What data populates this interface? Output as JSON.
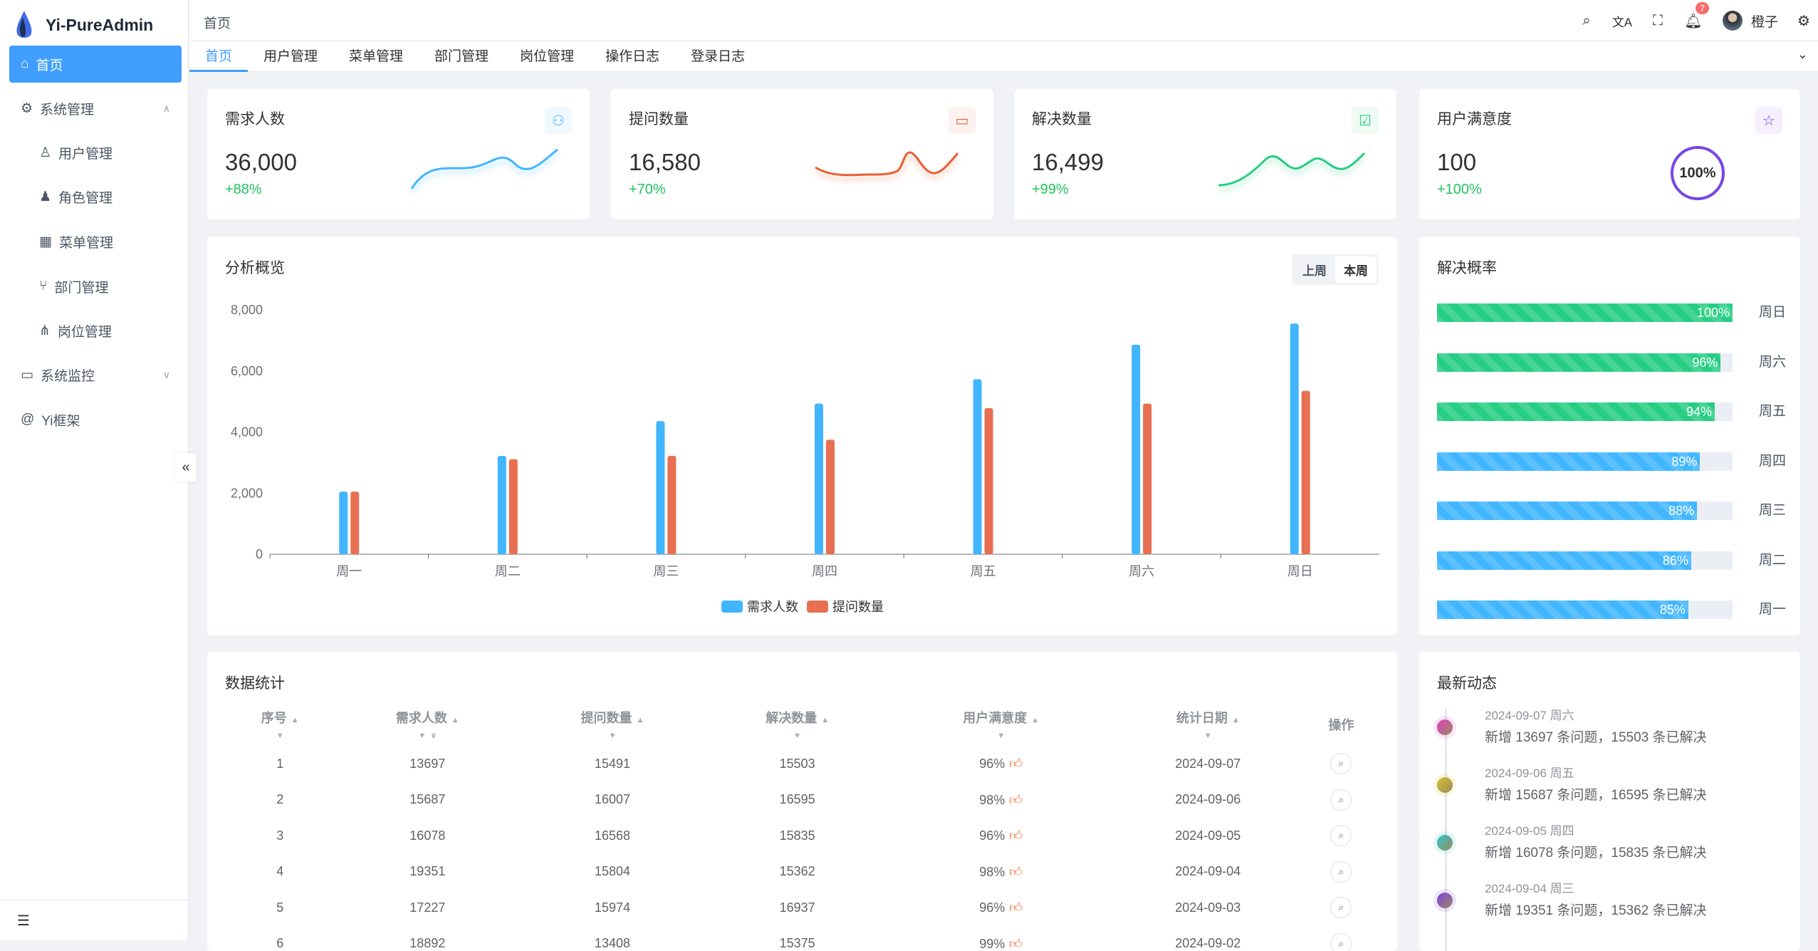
{
  "app": {
    "title": "Yi-PureAdmin"
  },
  "sidebar": {
    "items": [
      {
        "label": "首页",
        "icon": "home-icon",
        "active": true
      },
      {
        "label": "系统管理",
        "icon": "gear-icon",
        "expanded": true
      },
      {
        "label": "用户管理",
        "icon": "user-icon"
      },
      {
        "label": "角色管理",
        "icon": "role-icon"
      },
      {
        "label": "菜单管理",
        "icon": "menu-grid-icon"
      },
      {
        "label": "部门管理",
        "icon": "branch-icon"
      },
      {
        "label": "岗位管理",
        "icon": "org-icon"
      },
      {
        "label": "系统监控",
        "icon": "monitor-icon"
      },
      {
        "label": "Yi框架",
        "icon": "at-icon"
      }
    ],
    "collapse_label": "«"
  },
  "header": {
    "breadcrumb": "首页",
    "notifications": "7",
    "user": "橙子"
  },
  "tabs": [
    "首页",
    "用户管理",
    "菜单管理",
    "部门管理",
    "岗位管理",
    "操作日志",
    "登录日志"
  ],
  "stats": [
    {
      "title": "需求人数",
      "value": "36,000",
      "change": "+88%",
      "color": "#41b6ff",
      "icon": "users-icon"
    },
    {
      "title": "提问数量",
      "value": "16,580",
      "change": "+70%",
      "color": "#e85f33",
      "icon": "chat-icon"
    },
    {
      "title": "解决数量",
      "value": "16,499",
      "change": "+99%",
      "color": "#26ce83",
      "icon": "check-chat-icon"
    },
    {
      "title": "用户满意度",
      "value": "100",
      "change": "+100%",
      "color": "#7846e5",
      "icon": "star-icon",
      "ring": "100%"
    }
  ],
  "overview": {
    "title": "分析概览",
    "toggle": [
      "上周",
      "本周"
    ],
    "selected": "本周"
  },
  "chart_data": {
    "type": "bar",
    "categories": [
      "周一",
      "周二",
      "周三",
      "周四",
      "周五",
      "周六",
      "周日"
    ],
    "series": [
      {
        "name": "需求人数",
        "color": "#41b6ff",
        "values": [
          2050,
          3220,
          4360,
          4930,
          5730,
          6860,
          7550
        ]
      },
      {
        "name": "提问数量",
        "color": "#e86f51",
        "values": [
          2050,
          3110,
          3220,
          3750,
          4780,
          4930,
          5350
        ]
      }
    ],
    "yticks": [
      "0",
      "2,000",
      "4,000",
      "6,000",
      "8,000"
    ],
    "ylim": [
      0,
      8000
    ],
    "legend": "bottom"
  },
  "rate": {
    "title": "解决概率",
    "items": [
      {
        "label": "周日",
        "pct": 100,
        "text": "100%",
        "color": "#26ce83"
      },
      {
        "label": "周六",
        "pct": 96,
        "text": "96%",
        "color": "#26ce83"
      },
      {
        "label": "周五",
        "pct": 94,
        "text": "94%",
        "color": "#26ce83"
      },
      {
        "label": "周四",
        "pct": 89,
        "text": "89%",
        "color": "#41b6ff"
      },
      {
        "label": "周三",
        "pct": 88,
        "text": "88%",
        "color": "#41b6ff"
      },
      {
        "label": "周二",
        "pct": 86,
        "text": "86%",
        "color": "#41b6ff"
      },
      {
        "label": "周一",
        "pct": 85,
        "text": "85%",
        "color": "#41b6ff"
      }
    ]
  },
  "table": {
    "title": "数据统计",
    "columns": [
      "序号",
      "需求人数",
      "提问数量",
      "解决数量",
      "用户满意度",
      "统计日期",
      "操作"
    ],
    "rows": [
      [
        "1",
        "13697",
        "15491",
        "15503",
        "96%",
        "2024-09-07"
      ],
      [
        "2",
        "15687",
        "16007",
        "16595",
        "98%",
        "2024-09-06"
      ],
      [
        "3",
        "16078",
        "16568",
        "15835",
        "96%",
        "2024-09-05"
      ],
      [
        "4",
        "19351",
        "15804",
        "15362",
        "98%",
        "2024-09-04"
      ],
      [
        "5",
        "17227",
        "15974",
        "16937",
        "96%",
        "2024-09-03"
      ],
      [
        "6",
        "18892",
        "13408",
        "15375",
        "99%",
        "2024-09-02"
      ]
    ]
  },
  "activity": {
    "title": "最新动态",
    "items": [
      {
        "date": "2024-09-07 周六",
        "text": "新增 13697 条问题，15503 条已解决",
        "color": "#e040c0"
      },
      {
        "date": "2024-09-06 周五",
        "text": "新增 15687 条问题，16595 条已解决",
        "color": "#d8c030"
      },
      {
        "date": "2024-09-05 周四",
        "text": "新增 16078 条问题，15835 条已解决",
        "color": "#30c8c8"
      },
      {
        "date": "2024-09-04 周三",
        "text": "新增 19351 条问题，15362 条已解决",
        "color": "#8040e0"
      }
    ]
  }
}
